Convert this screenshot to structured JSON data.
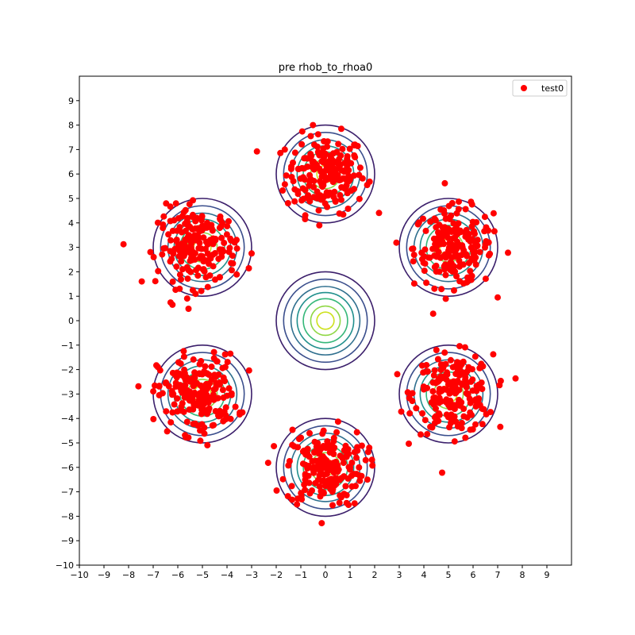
{
  "chart_data": {
    "type": "scatter",
    "title": "pre rhob_to_rhoa0",
    "xlabel": "",
    "ylabel": "",
    "xlim": [
      -10,
      10
    ],
    "ylim": [
      -10,
      10
    ],
    "x_ticks": [
      -10,
      -9,
      -8,
      -7,
      -6,
      -5,
      -4,
      -3,
      -2,
      -1,
      0,
      1,
      2,
      3,
      4,
      5,
      6,
      7,
      8,
      9
    ],
    "y_ticks": [
      -10,
      -9,
      -8,
      -7,
      -6,
      -5,
      -4,
      -3,
      -2,
      -1,
      0,
      1,
      2,
      3,
      4,
      5,
      6,
      7,
      8,
      9
    ],
    "grid": false,
    "legend": {
      "position": "top-right",
      "entries": [
        {
          "label": "test0",
          "color": "#ff0000"
        }
      ]
    },
    "series": [
      {
        "name": "test0",
        "color": "#ff0000",
        "cluster_centers": [
          [
            0,
            6
          ],
          [
            5.2,
            3
          ],
          [
            5.2,
            -3
          ],
          [
            0,
            -6
          ],
          [
            -5.2,
            -3
          ],
          [
            -5.2,
            3
          ]
        ],
        "cluster_std": 0.8,
        "points_per_cluster": 200
      }
    ],
    "contours": {
      "colormap": "viridis",
      "center_groups": [
        {
          "center": [
            0,
            0
          ],
          "radii": [
            2.0,
            1.7,
            1.4,
            1.15,
            0.9,
            0.6,
            0.35
          ]
        },
        {
          "center": [
            0,
            6
          ],
          "radii": [
            2.0,
            1.7,
            1.4,
            1.15,
            0.9,
            0.6,
            0.35
          ]
        },
        {
          "center": [
            5,
            3
          ],
          "radii": [
            2.0,
            1.7,
            1.4,
            1.15,
            0.9,
            0.6,
            0.35
          ]
        },
        {
          "center": [
            5,
            -3
          ],
          "radii": [
            2.0,
            1.7,
            1.4,
            1.15,
            0.9,
            0.6,
            0.35
          ]
        },
        {
          "center": [
            0,
            -6
          ],
          "radii": [
            2.0,
            1.7,
            1.4,
            1.15,
            0.9,
            0.6,
            0.35
          ]
        },
        {
          "center": [
            -5,
            -3
          ],
          "radii": [
            2.0,
            1.7,
            1.4,
            1.15,
            0.9,
            0.6,
            0.35
          ]
        },
        {
          "center": [
            -5,
            3
          ],
          "radii": [
            2.0,
            1.7,
            1.4,
            1.15,
            0.9,
            0.6,
            0.35
          ]
        }
      ],
      "level_colors": [
        "#3b1f6b",
        "#3a4e8c",
        "#2f6f8e",
        "#21908d",
        "#35b779",
        "#8fd744",
        "#cde11d"
      ]
    }
  }
}
